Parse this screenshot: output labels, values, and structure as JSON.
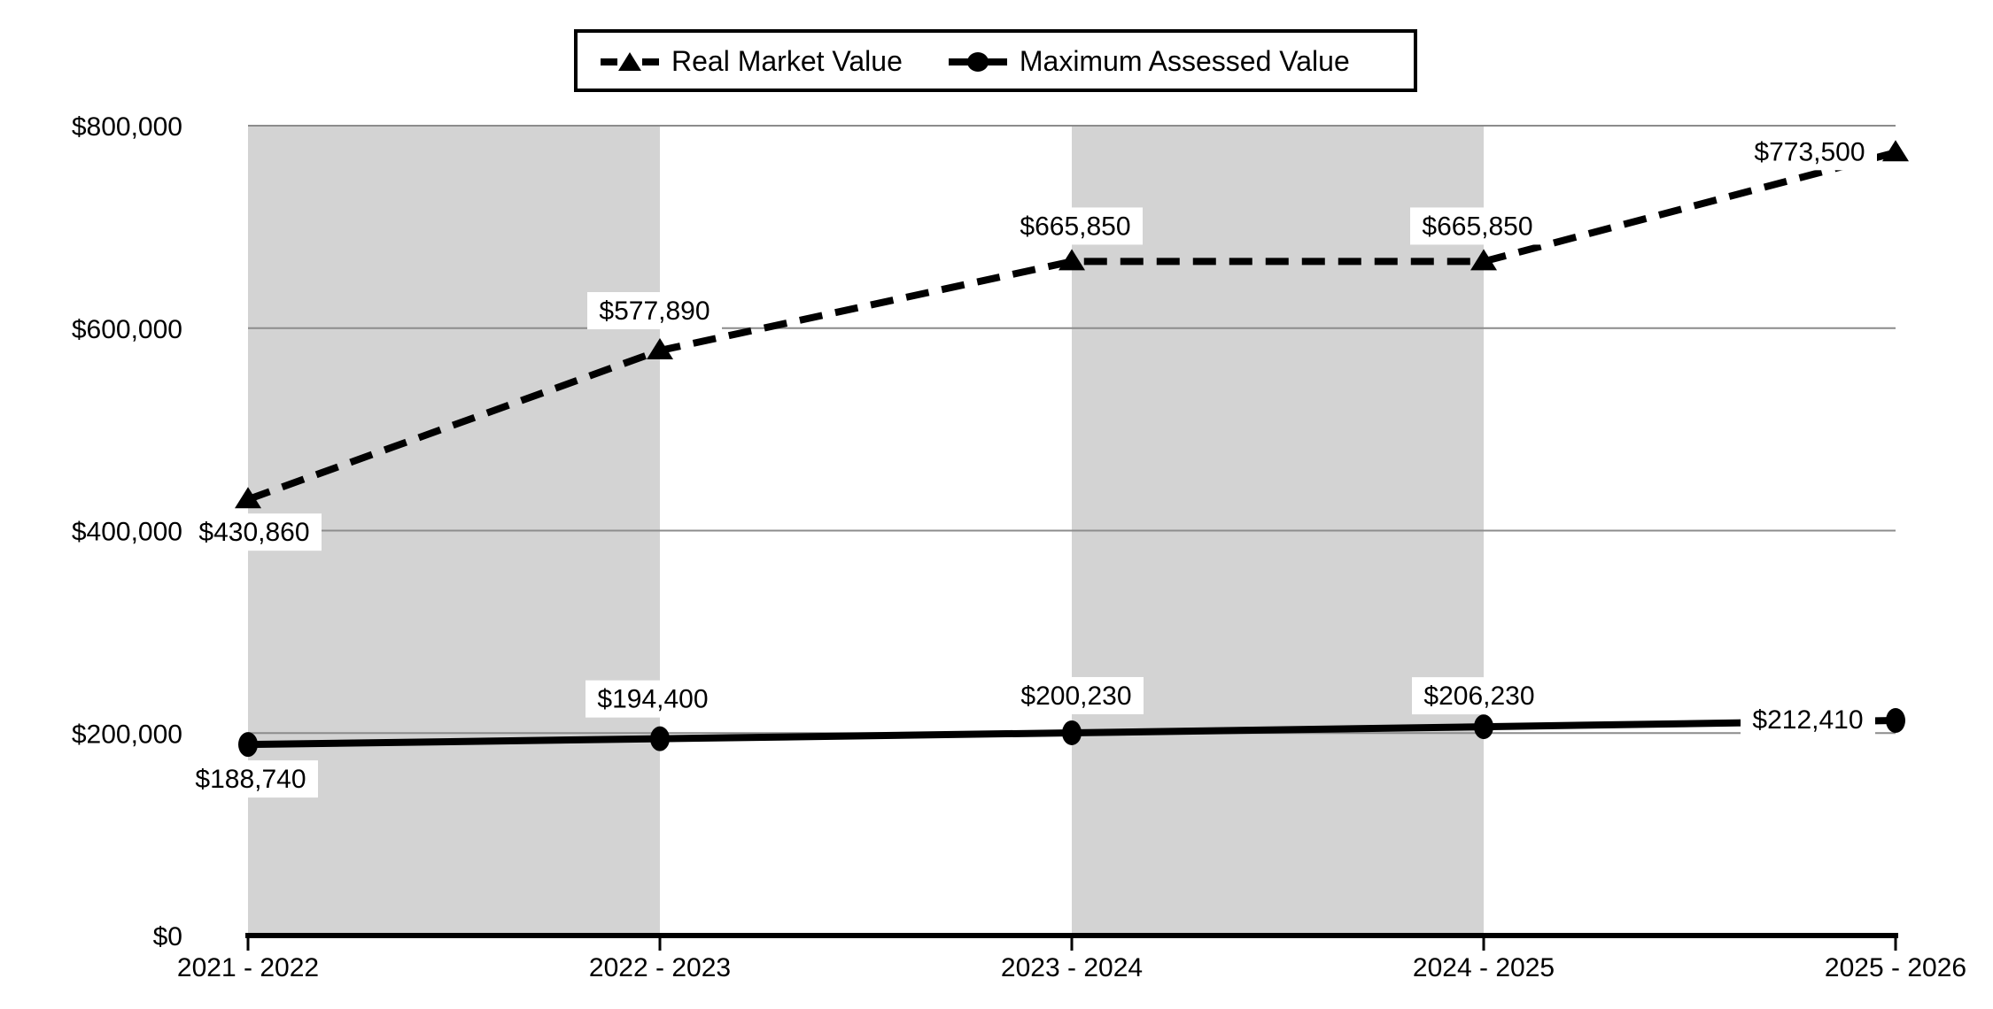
{
  "chart_data": {
    "type": "line",
    "title": "",
    "categories": [
      "2021 - 2022",
      "2022 - 2023",
      "2023 - 2024",
      "2024 - 2025",
      "2025 - 2026"
    ],
    "series": [
      {
        "name": "Real Market Value",
        "values": [
          430860,
          577890,
          665850,
          665850,
          773500
        ],
        "line_style": "dashed",
        "marker": "triangle",
        "color": "#000000"
      },
      {
        "name": "Maximum Assessed Value",
        "values": [
          188740,
          194400,
          200230,
          206230,
          212410
        ],
        "line_style": "solid",
        "marker": "circle",
        "color": "#000000"
      }
    ],
    "data_labels": {
      "visible": true,
      "format": "currency",
      "texts": [
        [
          "$430,860",
          "$577,890",
          "$665,850",
          "$665,850",
          "$773,500"
        ],
        [
          "$188,740",
          "$194,400",
          "$200,230",
          "$206,230",
          "$212,410"
        ]
      ],
      "background": "#ffffff"
    },
    "y_axis": {
      "range": [
        0,
        800000
      ],
      "ticks": [
        0,
        200000,
        400000,
        600000,
        800000
      ],
      "tick_labels": [
        "$0",
        "$200,000",
        "$400,000",
        "$600,000",
        "$800,000"
      ]
    },
    "x_axis": {
      "tick_marks": true,
      "axis_color": "#000000"
    },
    "legend": {
      "position": "top",
      "border": true,
      "entries": [
        "Real Market Value",
        "Maximum Assessed Value"
      ]
    },
    "plot": {
      "gridlines": true,
      "gridline_color": "#8c8c8c",
      "band_fill": "#d3d3d3",
      "banded_columns": [
        0,
        2
      ],
      "background": "#ffffff"
    }
  }
}
